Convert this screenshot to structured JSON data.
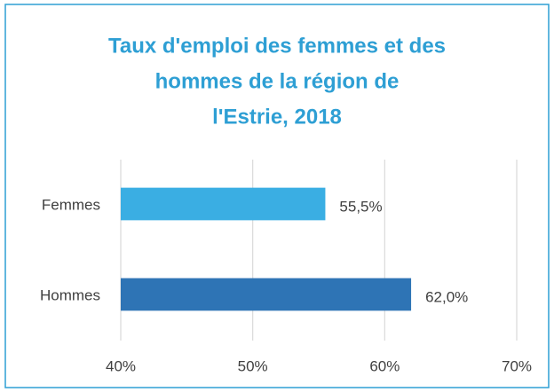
{
  "chart_data": {
    "type": "bar",
    "orientation": "horizontal",
    "title": [
      "Taux d'emploi des femmes et des",
      "hommes de la région de",
      "l'Estrie, 2018"
    ],
    "categories": [
      "Femmes",
      "Hommes"
    ],
    "values": [
      55.5,
      62.0
    ],
    "value_labels": [
      "55,5%",
      "62,0%"
    ],
    "colors": [
      "#3aaee3",
      "#2e74b5"
    ],
    "xlim": [
      40,
      70
    ],
    "xticks": [
      {
        "value": 40,
        "label": "40%"
      },
      {
        "value": 50,
        "label": "50%"
      },
      {
        "value": 60,
        "label": "60%"
      },
      {
        "value": 70,
        "label": "70%"
      }
    ],
    "grid": true
  }
}
